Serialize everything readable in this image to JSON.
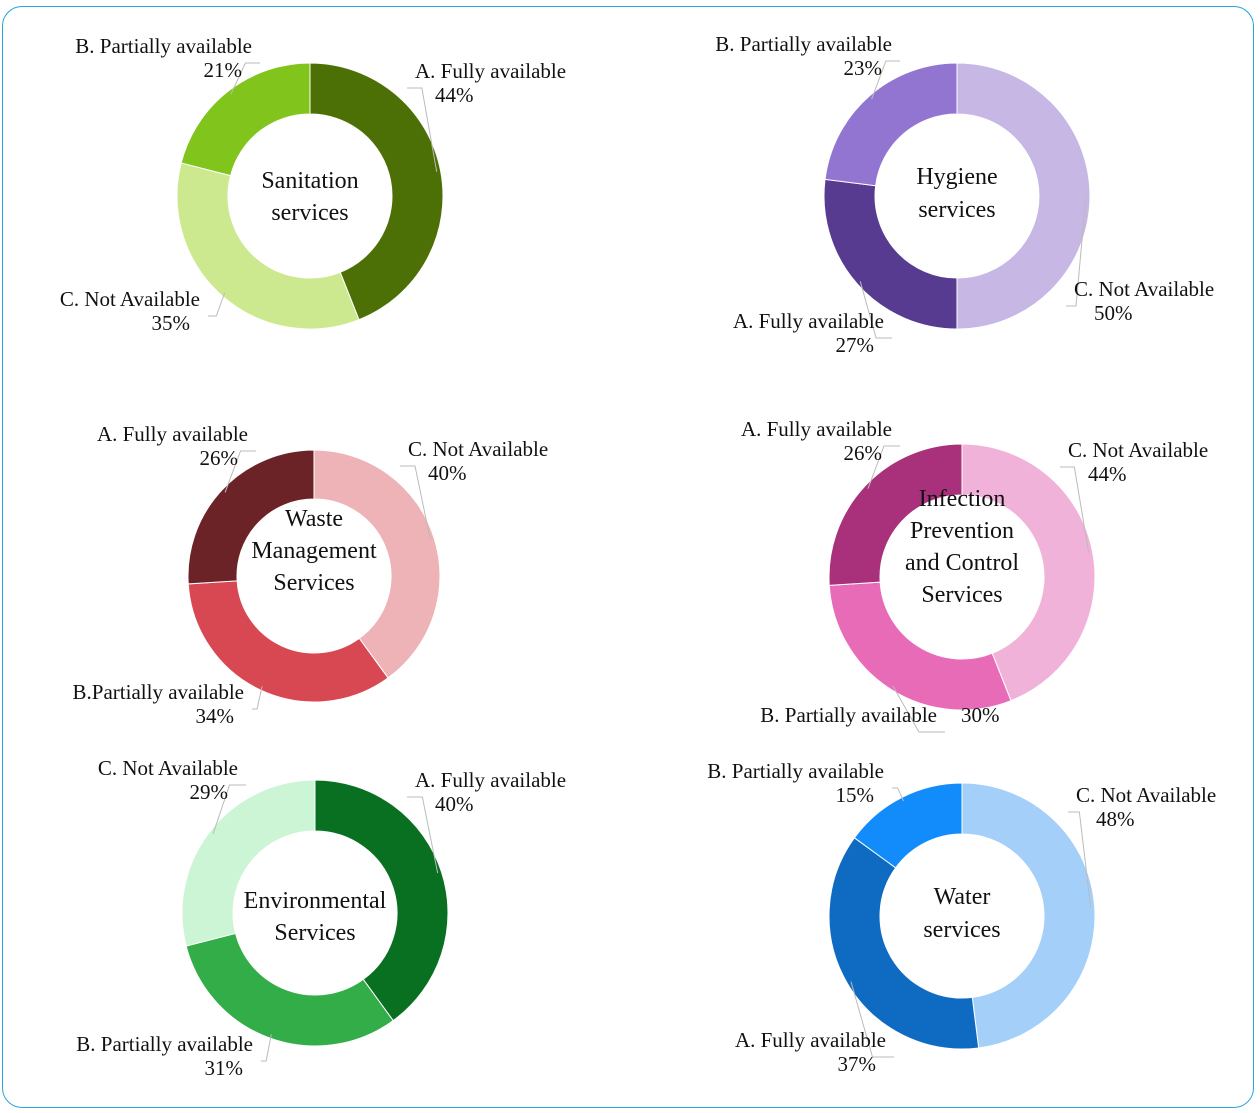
{
  "chart_data": [
    {
      "type": "pie",
      "donut": true,
      "title": "Sanitation services",
      "center_lines": [
        "Sanitation",
        "services"
      ],
      "slices": [
        {
          "key": "A",
          "label": "A. Fully available",
          "pct_label": "44%",
          "value": 44,
          "color": "#4d7006"
        },
        {
          "key": "C",
          "label": "C. Not Available",
          "pct_label": "35%",
          "value": 35,
          "color": "#cde98f"
        },
        {
          "key": "B",
          "label": "B. Partially available",
          "pct_label": "21%",
          "value": 21,
          "color": "#80c41c"
        }
      ]
    },
    {
      "type": "pie",
      "donut": true,
      "title": "Hygiene services",
      "center_lines": [
        "Hygiene",
        "services"
      ],
      "slices": [
        {
          "key": "C",
          "label": "C. Not Available",
          "pct_label": "50%",
          "value": 50,
          "color": "#c6b7e4"
        },
        {
          "key": "A",
          "label": "A. Fully available",
          "pct_label": "27%",
          "value": 27,
          "color": "#573b91"
        },
        {
          "key": "B",
          "label": "B. Partially available",
          "pct_label": "23%",
          "value": 23,
          "color": "#9175d1"
        }
      ]
    },
    {
      "type": "pie",
      "donut": true,
      "title": "Waste Management Services",
      "center_lines": [
        "Waste",
        "Management",
        "Services"
      ],
      "slices": [
        {
          "key": "C",
          "label": "C. Not Available",
          "pct_label": "40%",
          "value": 40,
          "color": "#eeb3b6"
        },
        {
          "key": "B",
          "label": "B.Partially available",
          "pct_label": "34%",
          "value": 34,
          "color": "#d84852"
        },
        {
          "key": "A",
          "label": "A. Fully available",
          "pct_label": "26%",
          "value": 26,
          "color": "#6b2327"
        }
      ]
    },
    {
      "type": "pie",
      "donut": true,
      "title": "Infection Prevention and Control Services",
      "center_lines": [
        "Infection",
        "Prevention",
        "and Control",
        "Services"
      ],
      "slices": [
        {
          "key": "C",
          "label": "C. Not Available",
          "pct_label": "44%",
          "value": 44,
          "color": "#f1b2da"
        },
        {
          "key": "B",
          "label": "B. Partially available",
          "pct_label": "30%",
          "value": 30,
          "color": "#e86bb7"
        },
        {
          "key": "A",
          "label": "A. Fully available",
          "pct_label": "26%",
          "value": 26,
          "color": "#a9317b"
        }
      ]
    },
    {
      "type": "pie",
      "donut": true,
      "title": "Environmental Services",
      "center_lines": [
        "Environmental",
        "Services"
      ],
      "slices": [
        {
          "key": "A",
          "label": "A. Fully available",
          "pct_label": "40%",
          "value": 40,
          "color": "#087020"
        },
        {
          "key": "B",
          "label": "B. Partially available",
          "pct_label": "31%",
          "value": 31,
          "color": "#33ad48"
        },
        {
          "key": "C",
          "label": "C. Not Available",
          "pct_label": "29%",
          "value": 29,
          "color": "#cbf5d5"
        }
      ]
    },
    {
      "type": "pie",
      "donut": true,
      "title": "Water services",
      "center_lines": [
        "Water",
        "services"
      ],
      "slices": [
        {
          "key": "C",
          "label": "C. Not Available",
          "pct_label": "48%",
          "value": 48,
          "color": "#a3cff9"
        },
        {
          "key": "A",
          "label": "A. Fully available",
          "pct_label": "37%",
          "value": 37,
          "color": "#0f6ac2"
        },
        {
          "key": "B",
          "label": "B. Partially available",
          "pct_label": "15%",
          "value": 15,
          "color": "#128cfb"
        }
      ]
    }
  ]
}
